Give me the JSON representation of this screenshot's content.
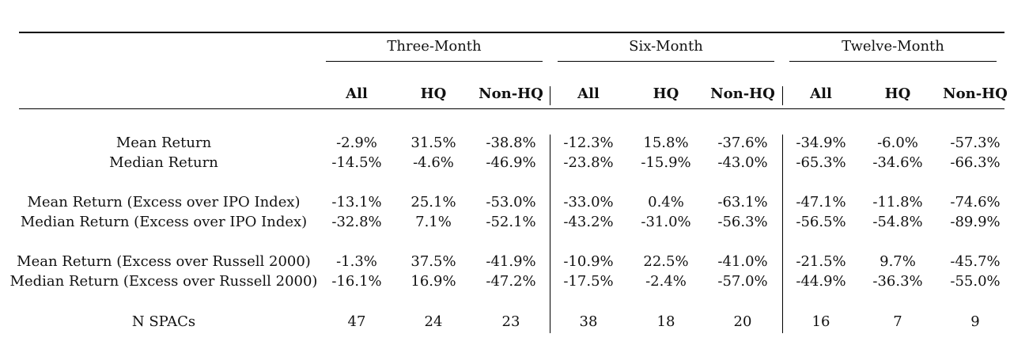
{
  "periods": [
    "Three-Month",
    "Six-Month",
    "Twelve-Month"
  ],
  "subheaders": [
    "All",
    "HQ",
    "Non-HQ"
  ],
  "rows": [
    {
      "label": "Mean Return",
      "values": [
        "-2.9%",
        "31.5%",
        "-38.8%",
        "-12.3%",
        "15.8%",
        "-37.6%",
        "-34.9%",
        "-6.0%",
        "-57.3%"
      ]
    },
    {
      "label": "Median Return",
      "values": [
        "-14.5%",
        "-4.6%",
        "-46.9%",
        "-23.8%",
        "-15.9%",
        "-43.0%",
        "-65.3%",
        "-34.6%",
        "-66.3%"
      ]
    },
    {
      "label": "Mean Return (Excess over IPO Index)",
      "values": [
        "-13.1%",
        "25.1%",
        "-53.0%",
        "-33.0%",
        "0.4%",
        "-63.1%",
        "-47.1%",
        "-11.8%",
        "-74.6%"
      ]
    },
    {
      "label": "Median Return (Excess over IPO Index)",
      "values": [
        "-32.8%",
        "7.1%",
        "-52.1%",
        "-43.2%",
        "-31.0%",
        "-56.3%",
        "-56.5%",
        "-54.8%",
        "-89.9%"
      ]
    },
    {
      "label": "Mean Return (Excess over Russell 2000)",
      "values": [
        "-1.3%",
        "37.5%",
        "-41.9%",
        "-10.9%",
        "22.5%",
        "-41.0%",
        "-21.5%",
        "9.7%",
        "-45.7%"
      ]
    },
    {
      "label": "Median Return (Excess over Russell 2000)",
      "values": [
        "-16.1%",
        "16.9%",
        "-47.2%",
        "-17.5%",
        "-2.4%",
        "-57.0%",
        "-44.9%",
        "-36.3%",
        "-55.0%"
      ]
    },
    {
      "label": "N SPACs",
      "values": [
        "47",
        "24",
        "23",
        "38",
        "18",
        "20",
        "16",
        "7",
        "9"
      ]
    }
  ]
}
